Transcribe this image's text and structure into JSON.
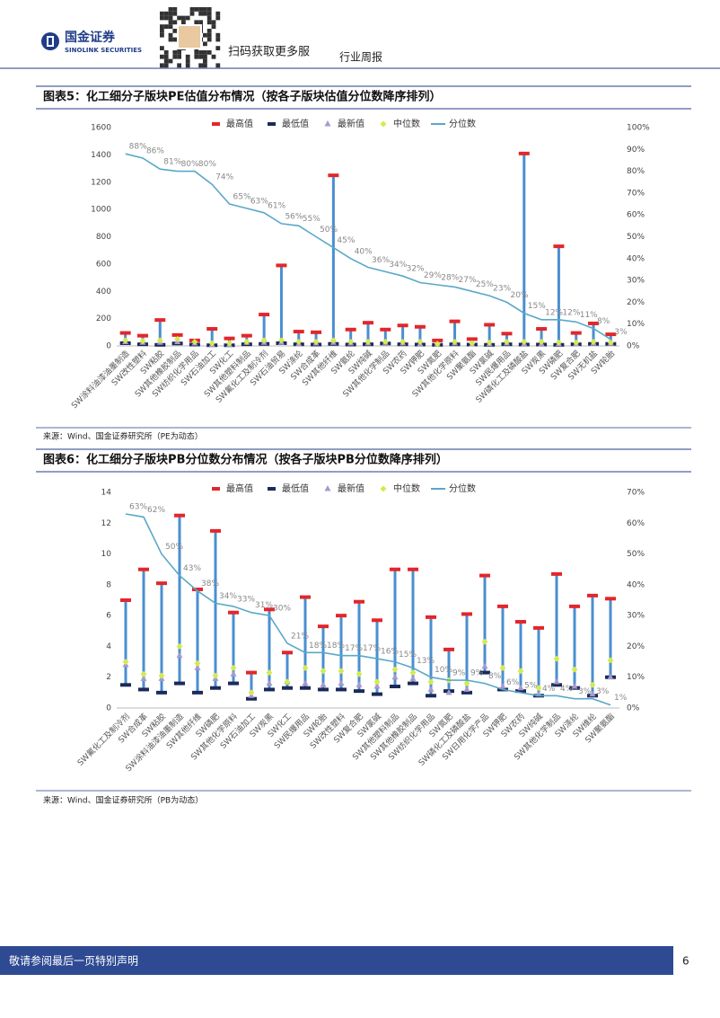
{
  "header": {
    "brand": "国金证券",
    "brand_en": "SINOLINK SECURITIES",
    "qr_caption": "扫码获取更多服",
    "report_type": "行业周报"
  },
  "footer": {
    "disclaimer": "敬请参阅最后一页特别声明",
    "page": "6"
  },
  "chart_data": [
    {
      "type": "combo",
      "title": "图表5：化工细分子版块PE估值分布情况（按各子版块估值分位数降序排列）",
      "note": "来源：Wind、国金证券研究所（PE为动态）",
      "categories": [
        "SW涂料油漆油墨制造",
        "SW改性塑料",
        "SW粘胶",
        "SW其他橡胶制品",
        "SW纺织化学用品",
        "SW石油加工",
        "SW化工",
        "SW其他塑料制品",
        "SW氟化工及制冷剂",
        "SW石油贸易",
        "SW涤纶",
        "SW合成革",
        "SW其他纤维",
        "SW氨纶",
        "SW纯碱",
        "SW其他化学制品",
        "SW农药",
        "SW钾肥",
        "SW氮肥",
        "SW其他化学原料",
        "SW聚氨酯",
        "SW氯碱",
        "SW民爆用品",
        "SW磷化工及磷酸盐",
        "SW炭黑",
        "SW磷肥",
        "SW复合肥",
        "SW无机盐",
        "SW轮胎"
      ],
      "range_color": "#4a8fd0",
      "series": [
        {
          "name": "最高值",
          "color": "#e3262b",
          "marker": "dash",
          "values": [
            95,
            75,
            190,
            80,
            40,
            125,
            55,
            75,
            230,
            590,
            105,
            100,
            1250,
            120,
            170,
            120,
            150,
            140,
            40,
            180,
            50,
            155,
            90,
            1410,
            125,
            730,
            95,
            165,
            85
          ]
        },
        {
          "name": "最低值",
          "color": "#1b2a5a",
          "marker": "dash",
          "values": [
            20,
            12,
            8,
            18,
            10,
            5,
            5,
            12,
            15,
            20,
            12,
            10,
            15,
            10,
            12,
            18,
            12,
            10,
            8,
            12,
            10,
            8,
            12,
            10,
            10,
            8,
            12,
            15,
            15
          ]
        },
        {
          "name": "最新值",
          "color": "#a898cf",
          "marker": "triangle",
          "values": [
            30,
            25,
            25,
            30,
            20,
            10,
            10,
            25,
            25,
            25,
            15,
            20,
            25,
            20,
            20,
            25,
            20,
            15,
            12,
            20,
            12,
            15,
            20,
            15,
            15,
            15,
            15,
            20,
            20
          ]
        },
        {
          "name": "中位数",
          "color": "#d6ea4c",
          "marker": "diamond",
          "values": [
            40,
            35,
            40,
            50,
            30,
            20,
            20,
            30,
            40,
            40,
            30,
            30,
            40,
            30,
            30,
            30,
            30,
            30,
            15,
            30,
            20,
            25,
            30,
            30,
            30,
            25,
            25,
            30,
            25
          ]
        },
        {
          "name": "分位数",
          "color": "#5aa8c8",
          "marker": "line",
          "axis": "y2",
          "values": [
            88,
            86,
            81,
            80,
            80,
            74,
            65,
            63,
            61,
            56,
            55,
            50,
            45,
            40,
            36,
            34,
            32,
            29,
            28,
            27,
            25,
            23,
            20,
            15,
            12,
            12,
            11,
            8,
            3
          ],
          "value_labels": [
            "88%",
            "86%",
            "81%",
            "80%",
            "80%",
            "74%",
            "65%",
            "63%",
            "61%",
            "56%",
            "55%",
            "50%",
            "45%",
            "40%",
            "36%",
            "34%",
            "32%",
            "29%",
            "28%",
            "27%",
            "25%",
            "23%",
            "20%",
            "15%",
            "12%",
            "12%",
            "11%",
            "8%",
            "3%"
          ]
        }
      ],
      "ylim": [
        0,
        1600
      ],
      "yticks": [
        0,
        200,
        400,
        600,
        800,
        1000,
        1200,
        1400,
        1600
      ],
      "y2lim": [
        0,
        100
      ],
      "y2ticks": [
        {
          "value": 0,
          "label": "0%"
        },
        {
          "value": 10,
          "label": "10%"
        },
        {
          "value": 20,
          "label": "20%"
        },
        {
          "value": 30,
          "label": "30%"
        },
        {
          "value": 40,
          "label": "40%"
        },
        {
          "value": 50,
          "label": "50%"
        },
        {
          "value": 60,
          "label": "60%"
        },
        {
          "value": 70,
          "label": "70%"
        },
        {
          "value": 80,
          "label": "80%"
        },
        {
          "value": 90,
          "label": "90%"
        },
        {
          "value": 100,
          "label": "100%"
        }
      ],
      "grid": false,
      "legend": "top"
    },
    {
      "type": "combo",
      "title": "图表6：化工细分子版块PB分位数分布情况（按各子版块PB分位数降序排列）",
      "note": "来源：Wind、国金证券研究所（PB为动态）",
      "categories": [
        "SW氟化工及制冷剂",
        "SW合成革",
        "SW粘胶",
        "SW涂料油漆油墨制造",
        "SW其他纤维",
        "SW磷肥",
        "SW其他化学原料",
        "SW石油加工",
        "SW炭黑",
        "SW化工",
        "SW民爆用品",
        "SW轮胎",
        "SW改性塑料",
        "SW复合肥",
        "SW氯碱",
        "SW其他塑料制品",
        "SW其他橡胶制品",
        "SW纺织化学用品",
        "SW氮肥",
        "SW磷化工及磷酸盐",
        "SW日用化学产品",
        "SW钾肥",
        "SW农药",
        "SW纯碱",
        "SW其他化学制品",
        "SW涤纶",
        "SW维纶",
        "SW聚氨酯"
      ],
      "range_color": "#4a8fd0",
      "series": [
        {
          "name": "最高值",
          "color": "#e3262b",
          "marker": "dash",
          "values": [
            7.0,
            9.0,
            8.1,
            12.5,
            7.7,
            11.5,
            6.2,
            2.3,
            6.4,
            3.6,
            7.2,
            5.3,
            6.0,
            6.9,
            5.7,
            9.0,
            9.0,
            5.9,
            3.8,
            6.1,
            8.6,
            6.6,
            5.6,
            5.2,
            8.7,
            6.6,
            7.3,
            7.1
          ]
        },
        {
          "name": "最低值",
          "color": "#1b2a5a",
          "marker": "dash",
          "values": [
            1.5,
            1.2,
            1.0,
            1.6,
            1.0,
            1.3,
            1.6,
            0.6,
            1.2,
            1.3,
            1.3,
            1.2,
            1.2,
            1.1,
            0.9,
            1.4,
            1.6,
            0.8,
            1.1,
            1.0,
            2.3,
            1.2,
            1.1,
            0.8,
            1.5,
            1.3,
            0.8,
            2.0
          ]
        },
        {
          "name": "最新值",
          "color": "#a898cf",
          "marker": "triangle",
          "values": [
            2.8,
            1.9,
            1.9,
            3.4,
            2.6,
            1.9,
            2.2,
            0.8,
            1.6,
            1.7,
            1.6,
            1.5,
            1.6,
            1.5,
            1.4,
            2.0,
            1.9,
            1.2,
            1.0,
            1.2,
            2.7,
            1.4,
            1.3,
            0.9,
            1.7,
            1.4,
            0.9,
            2.0
          ]
        },
        {
          "name": "中位数",
          "color": "#d6ea4c",
          "marker": "diamond",
          "values": [
            3.0,
            2.2,
            2.1,
            4.0,
            2.9,
            2.1,
            2.6,
            1.0,
            2.3,
            1.7,
            2.6,
            2.4,
            2.4,
            2.2,
            1.7,
            2.5,
            2.3,
            1.7,
            1.8,
            1.6,
            4.3,
            2.6,
            2.4,
            1.3,
            3.2,
            2.5,
            1.5,
            3.1
          ]
        },
        {
          "name": "分位数",
          "color": "#5aa8c8",
          "marker": "line",
          "axis": "y2",
          "values": [
            63,
            62,
            50,
            43,
            38,
            34,
            33,
            31,
            30,
            21,
            18,
            18,
            17,
            17,
            16,
            15,
            13,
            10,
            9,
            9,
            8,
            6,
            5,
            4,
            4,
            3,
            3,
            1
          ],
          "value_labels": [
            "63%",
            "62%",
            "50%",
            "43%",
            "38%",
            "34%",
            "33%",
            "31%",
            "30%",
            "21%",
            "18%",
            "18%",
            "17%",
            "17%",
            "16%",
            "15%",
            "13%",
            "10%",
            "9%",
            "9%",
            "8%",
            "6%",
            "5%",
            "4%",
            "4%",
            "3%",
            "3%",
            "1%"
          ]
        }
      ],
      "ylim": [
        0,
        14
      ],
      "yticks": [
        0,
        2,
        4,
        6,
        8,
        10,
        12,
        14
      ],
      "y2lim": [
        0,
        70
      ],
      "y2ticks": [
        {
          "value": 0,
          "label": "0%"
        },
        {
          "value": 10,
          "label": "10%"
        },
        {
          "value": 20,
          "label": "20%"
        },
        {
          "value": 30,
          "label": "30%"
        },
        {
          "value": 40,
          "label": "40%"
        },
        {
          "value": 50,
          "label": "50%"
        },
        {
          "value": 60,
          "label": "60%"
        },
        {
          "value": 70,
          "label": "70%"
        }
      ],
      "grid": false,
      "legend": "top"
    }
  ]
}
